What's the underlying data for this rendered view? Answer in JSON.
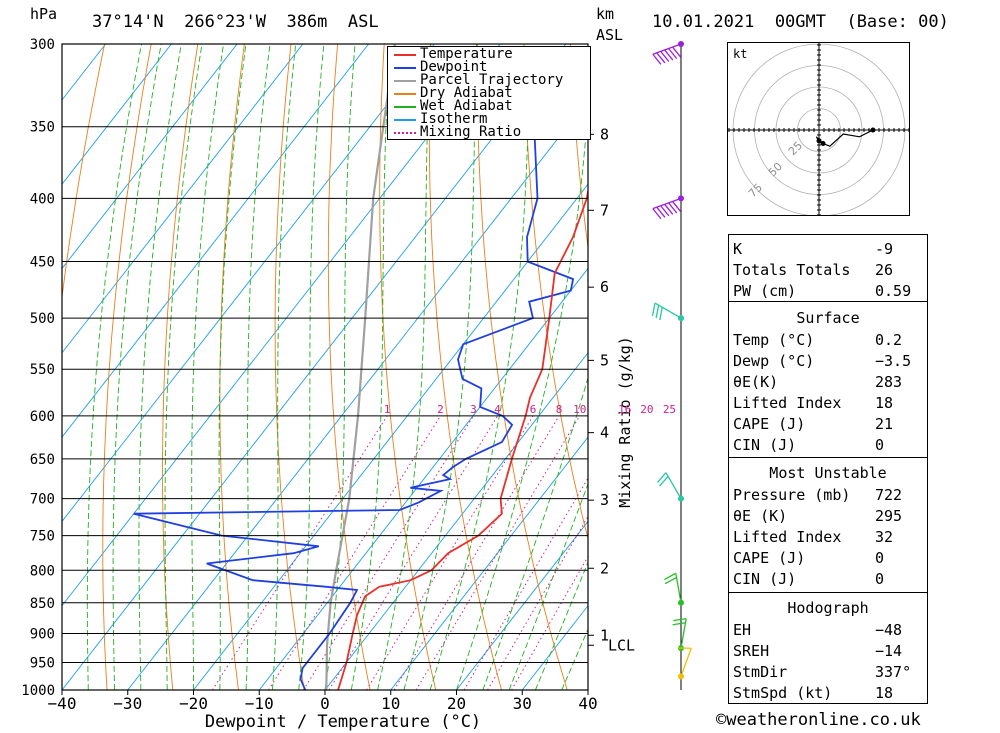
{
  "header": {
    "hpa_label": "hPa",
    "location": "37°14'N  266°23'W  386m  ASL",
    "km_label": "km",
    "asl_label": "ASL",
    "datetime": "10.01.2021  00GMT  (Base: 00)"
  },
  "legend": [
    {
      "label": "Temperature",
      "color": "#e8302c",
      "style": "solid"
    },
    {
      "label": "Dewpoint",
      "color": "#1f3fe0",
      "style": "solid"
    },
    {
      "label": "Parcel Trajectory",
      "color": "#a0a0a0",
      "style": "solid"
    },
    {
      "label": "Dry Adiabat",
      "color": "#e8801c",
      "style": "solid"
    },
    {
      "label": "Wet Adiabat",
      "color": "#22b022",
      "style": "solid"
    },
    {
      "label": "Isotherm",
      "color": "#1f9fe8",
      "style": "solid"
    },
    {
      "label": "Mixing Ratio",
      "color": "#d0208a",
      "style": "dotted"
    }
  ],
  "chart_data": {
    "type": "skewt-logp",
    "xlabel": "Dewpoint / Temperature (°C)",
    "ylabel": "hPa",
    "right_axis_label": "Mixing Ratio (g/kg)",
    "xlim": [
      -40,
      40
    ],
    "plim": [
      1000,
      300
    ],
    "pressure_ticks": [
      300,
      350,
      400,
      450,
      500,
      550,
      600,
      650,
      700,
      750,
      800,
      850,
      900,
      950,
      1000
    ],
    "temp_ticks": [
      -40,
      -30,
      -20,
      -10,
      0,
      10,
      20,
      30,
      40
    ],
    "temp_tick_labels": [
      "−40",
      "−30",
      "−20",
      "−10",
      "0",
      "10",
      "20",
      "30",
      "40"
    ],
    "height_ticks": [
      {
        "label": "8",
        "p": 355
      },
      {
        "label": "7",
        "p": 409
      },
      {
        "label": "6",
        "p": 472
      },
      {
        "label": "5",
        "p": 541
      },
      {
        "label": "4",
        "p": 619
      },
      {
        "label": "3",
        "p": 702
      },
      {
        "label": "2",
        "p": 797
      },
      {
        "label": "1",
        "p": 903
      }
    ],
    "lcl": {
      "label": "LCL",
      "p": 920
    },
    "mixing_ratio_labels": [
      "1",
      "2",
      "3",
      "4",
      "6",
      "8",
      "10",
      "16",
      "20",
      "25"
    ],
    "mixing_ratio_values": [
      1,
      2,
      3,
      4,
      6,
      8,
      10,
      16,
      20,
      25
    ],
    "temperature": [
      {
        "p": 1000,
        "t": 2
      },
      {
        "p": 950,
        "t": 0
      },
      {
        "p": 900,
        "t": -2.5
      },
      {
        "p": 870,
        "t": -4
      },
      {
        "p": 840,
        "t": -5
      },
      {
        "p": 825,
        "t": -4
      },
      {
        "p": 815,
        "t": 0
      },
      {
        "p": 800,
        "t": 2
      },
      {
        "p": 775,
        "t": 2.5
      },
      {
        "p": 750,
        "t": 5
      },
      {
        "p": 720,
        "t": 6
      },
      {
        "p": 700,
        "t": 4
      },
      {
        "p": 650,
        "t": 1
      },
      {
        "p": 600,
        "t": -2
      },
      {
        "p": 580,
        "t": -3.5
      },
      {
        "p": 550,
        "t": -5
      },
      {
        "p": 500,
        "t": -10
      },
      {
        "p": 460,
        "t": -14.5
      },
      {
        "p": 450,
        "t": -15
      },
      {
        "p": 430,
        "t": -16
      },
      {
        "p": 400,
        "t": -18.5
      },
      {
        "p": 350,
        "t": -25
      },
      {
        "p": 330,
        "t": -28
      },
      {
        "p": 310,
        "t": -29
      },
      {
        "p": 300,
        "t": -30
      }
    ],
    "dewpoint": [
      {
        "p": 1000,
        "t": -3
      },
      {
        "p": 980,
        "t": -5
      },
      {
        "p": 960,
        "t": -6
      },
      {
        "p": 950,
        "t": -6
      },
      {
        "p": 900,
        "t": -6
      },
      {
        "p": 850,
        "t": -6.5
      },
      {
        "p": 830,
        "t": -7
      },
      {
        "p": 825,
        "t": -12
      },
      {
        "p": 815,
        "t": -24
      },
      {
        "p": 790,
        "t": -33
      },
      {
        "p": 775,
        "t": -21
      },
      {
        "p": 765,
        "t": -18
      },
      {
        "p": 750,
        "t": -34
      },
      {
        "p": 720,
        "t": -50
      },
      {
        "p": 715,
        "t": -10
      },
      {
        "p": 705,
        "t": -8
      },
      {
        "p": 690,
        "t": -6
      },
      {
        "p": 686,
        "t": -11
      },
      {
        "p": 675,
        "t": -6
      },
      {
        "p": 670,
        "t": -7.5
      },
      {
        "p": 660,
        "t": -7
      },
      {
        "p": 650,
        "t": -6
      },
      {
        "p": 630,
        "t": -2.5
      },
      {
        "p": 610,
        "t": -3
      },
      {
        "p": 600,
        "t": -5.5
      },
      {
        "p": 590,
        "t": -10
      },
      {
        "p": 570,
        "t": -12
      },
      {
        "p": 560,
        "t": -16
      },
      {
        "p": 540,
        "t": -19
      },
      {
        "p": 525,
        "t": -20
      },
      {
        "p": 500,
        "t": -12.5
      },
      {
        "p": 485,
        "t": -15
      },
      {
        "p": 475,
        "t": -10
      },
      {
        "p": 465,
        "t": -11
      },
      {
        "p": 450,
        "t": -20
      },
      {
        "p": 430,
        "t": -23
      },
      {
        "p": 400,
        "t": -26
      },
      {
        "p": 350,
        "t": -35
      },
      {
        "p": 320,
        "t": -39
      },
      {
        "p": 300,
        "t": -35
      }
    ],
    "parcel": [
      {
        "p": 1000,
        "t": 0.2
      },
      {
        "p": 920,
        "t": -5
      },
      {
        "p": 850,
        "t": -9.5
      },
      {
        "p": 800,
        "t": -12.5
      },
      {
        "p": 700,
        "t": -19
      },
      {
        "p": 600,
        "t": -27.5
      },
      {
        "p": 500,
        "t": -38
      },
      {
        "p": 400,
        "t": -51
      },
      {
        "p": 300,
        "t": -66
      }
    ],
    "wind_barbs": [
      {
        "p": 300,
        "dir": 250,
        "speed": 75
      },
      {
        "p": 400,
        "dir": 250,
        "speed": 70
      },
      {
        "p": 500,
        "dir": 300,
        "speed": 25
      },
      {
        "p": 700,
        "dir": 330,
        "speed": 15
      },
      {
        "p": 850,
        "dir": 350,
        "speed": 15
      },
      {
        "p": 925,
        "dir": 10,
        "speed": 15
      },
      {
        "p": 975,
        "dir": 20,
        "speed": 10
      }
    ]
  },
  "hodograph": {
    "unit_label": "kt",
    "ring_labels": [
      "25",
      "50",
      "75"
    ],
    "trace": [
      [
        0,
        -8
      ],
      [
        -2,
        -5
      ],
      [
        3,
        -10
      ],
      [
        8,
        -12
      ],
      [
        18,
        -3
      ],
      [
        30,
        -5
      ],
      [
        40,
        0
      ]
    ]
  },
  "indices": {
    "top": [
      {
        "label": "K",
        "value": "-9"
      },
      {
        "label": "Totals Totals",
        "value": "26"
      },
      {
        "label": "PW (cm)",
        "value": "0.59"
      }
    ],
    "surface_title": "Surface",
    "surface": [
      {
        "label": "Temp (°C)",
        "value": "0.2"
      },
      {
        "label": "Dewp (°C)",
        "value": "−3.5"
      },
      {
        "label": "θE(K)",
        "value": "283"
      },
      {
        "label": "Lifted Index",
        "value": "18"
      },
      {
        "label": "CAPE (J)",
        "value": "21"
      },
      {
        "label": "CIN (J)",
        "value": "0"
      }
    ],
    "unstable_title": "Most Unstable",
    "unstable": [
      {
        "label": "Pressure (mb)",
        "value": "722"
      },
      {
        "label": "θE (K)",
        "value": "295"
      },
      {
        "label": "Lifted Index",
        "value": "32"
      },
      {
        "label": "CAPE (J)",
        "value": "0"
      },
      {
        "label": "CIN (J)",
        "value": "0"
      }
    ],
    "hodo_title": "Hodograph",
    "hodo": [
      {
        "label": "EH",
        "value": "−48"
      },
      {
        "label": "SREH",
        "value": "−14"
      },
      {
        "label": "StmDir",
        "value": "337°"
      },
      {
        "label": "StmSpd (kt)",
        "value": "18"
      }
    ]
  },
  "footer": {
    "copyright": "©weatheronline.co.uk"
  }
}
